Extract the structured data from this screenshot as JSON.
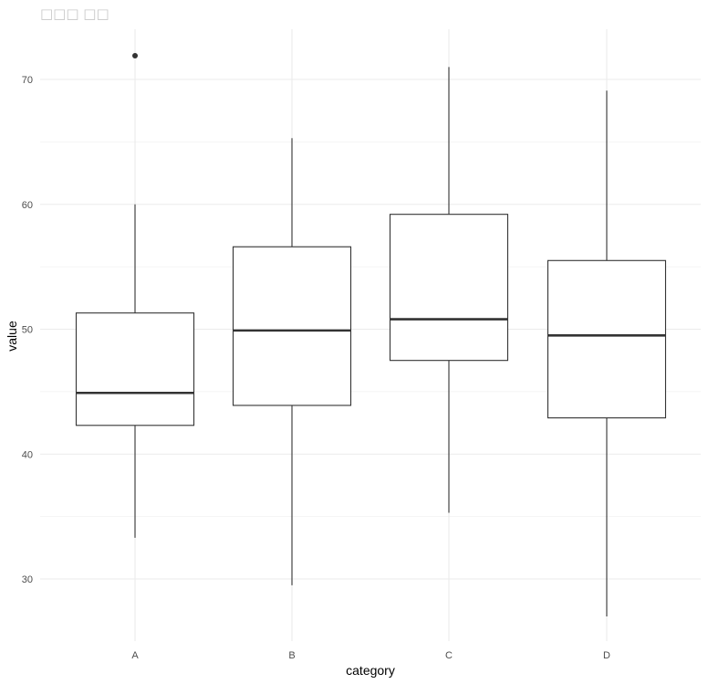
{
  "chart_data": {
    "type": "boxplot",
    "title": "□□□ □□",
    "xlabel": "category",
    "ylabel": "value",
    "categories": [
      "A",
      "B",
      "C",
      "D"
    ],
    "ylim": [
      25,
      74
    ],
    "y_ticks": [
      30,
      40,
      50,
      60,
      70
    ],
    "grid": true,
    "boxes": [
      {
        "category": "A",
        "whisker_low": 33.3,
        "q1": 42.3,
        "median": 44.9,
        "q3": 51.3,
        "whisker_high": 60.0,
        "outliers": [
          71.9
        ]
      },
      {
        "category": "B",
        "whisker_low": 29.5,
        "q1": 43.9,
        "median": 49.9,
        "q3": 56.6,
        "whisker_high": 65.3,
        "outliers": []
      },
      {
        "category": "C",
        "whisker_low": 35.3,
        "q1": 47.5,
        "median": 50.8,
        "q3": 59.2,
        "whisker_high": 71.0,
        "outliers": []
      },
      {
        "category": "D",
        "whisker_low": 27.0,
        "q1": 42.9,
        "median": 49.5,
        "q3": 55.5,
        "whisker_high": 69.1,
        "outliers": []
      }
    ],
    "colors": {
      "box_stroke": "#333333",
      "box_fill": "#ffffff",
      "grid": "#ebebeb",
      "tick_text": "#4d4d4d"
    }
  }
}
